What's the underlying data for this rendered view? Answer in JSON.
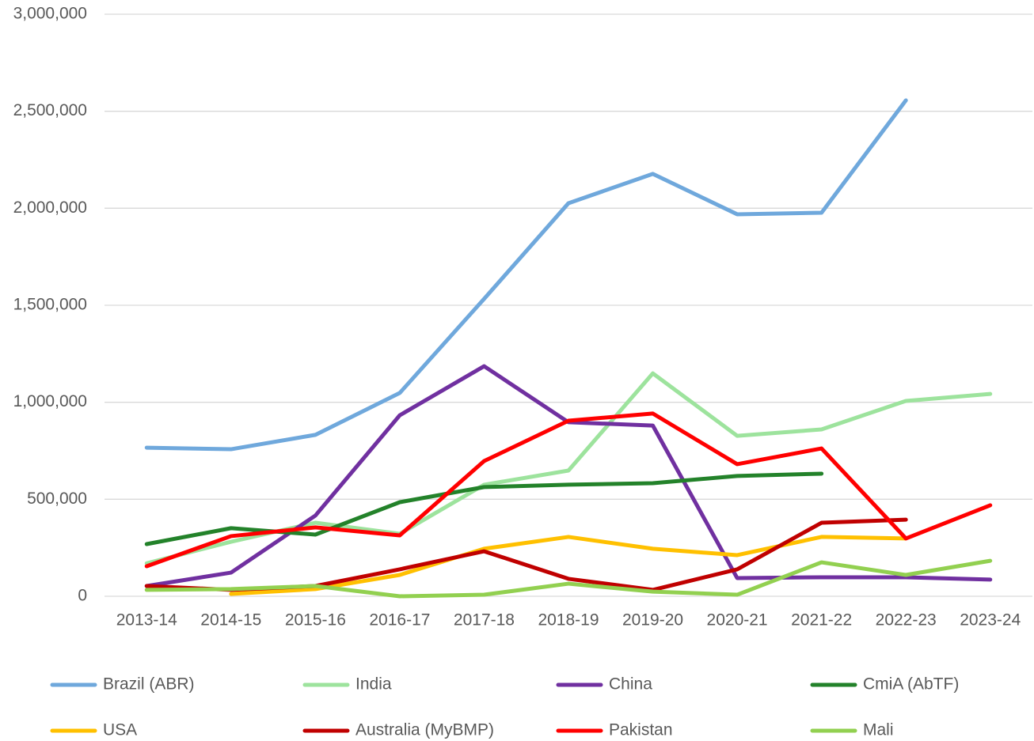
{
  "chart_data": {
    "type": "line",
    "categories": [
      "2013-14",
      "2014-15",
      "2015-16",
      "2016-17",
      "2017-18",
      "2018-19",
      "2019-20",
      "2020-21",
      "2021-22",
      "2022-23",
      "2023-24"
    ],
    "ylim": [
      0,
      3000000
    ],
    "yticks": [
      0,
      {
        "value": 500000,
        "label": "500,000"
      },
      {
        "value": 1000000,
        "label": "1,000,000"
      },
      {
        "value": 1500000,
        "label": "1,500,000"
      },
      {
        "value": 2000000,
        "label": "2,000,000"
      },
      {
        "value": 2500000,
        "label": "2,500,000"
      },
      {
        "value": 3000000,
        "label": "3,000,000"
      }
    ],
    "grid": true,
    "legend": "bottom",
    "series": [
      {
        "name": "Brazil (ABR)",
        "color": "#6fa8dc",
        "values": [
          766000,
          758000,
          832000,
          1048000,
          1533000,
          2026000,
          2177000,
          1969000,
          1977000,
          2556000,
          null
        ]
      },
      {
        "name": "India",
        "color": "#9de39d",
        "values": [
          170000,
          281000,
          379000,
          322000,
          575000,
          648000,
          1149000,
          827000,
          860000,
          1007000,
          1043000
        ]
      },
      {
        "name": "China",
        "color": "#7030a0",
        "values": [
          53000,
          122000,
          416000,
          933000,
          1186000,
          897000,
          880000,
          94000,
          98000,
          98000,
          86000
        ]
      },
      {
        "name": "CmiA (AbTF)",
        "color": "#23822a",
        "values": [
          269000,
          351000,
          318000,
          485000,
          563000,
          575000,
          583000,
          620000,
          632000,
          null,
          null
        ]
      },
      {
        "name": "USA",
        "color": "#ffc000",
        "values": [
          null,
          12000,
          37000,
          110000,
          245000,
          306000,
          245000,
          212000,
          306000,
          298000,
          null
        ]
      },
      {
        "name": "Australia (MyBMP)",
        "color": "#c00000",
        "values": [
          53000,
          33000,
          53000,
          139000,
          232000,
          90000,
          33000,
          139000,
          379000,
          395000,
          null
        ]
      },
      {
        "name": "Pakistan",
        "color": "#ff0000",
        "values": [
          155000,
          310000,
          355000,
          314000,
          697000,
          905000,
          942000,
          681000,
          762000,
          298000,
          469000
        ]
      },
      {
        "name": "Mali",
        "color": "#92d050",
        "values": [
          33000,
          37000,
          53000,
          0,
          8000,
          65000,
          24000,
          8000,
          175000,
          110000,
          183000
        ]
      }
    ]
  }
}
